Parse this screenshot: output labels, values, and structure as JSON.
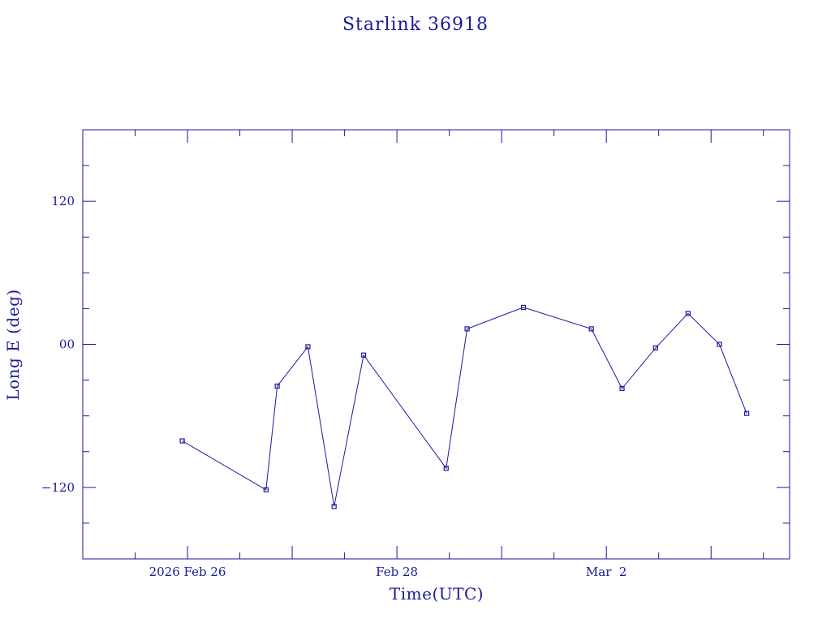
{
  "chart_data": {
    "type": "line",
    "title": "Starlink 36918",
    "xlabel": "Time(UTC)",
    "ylabel": "Long E (deg)",
    "x_tick_labels": [
      {
        "x": "2026-02-26",
        "label": "2026 Feb 26"
      },
      {
        "x": "2026-02-28",
        "label": "Feb 28"
      },
      {
        "x": "2026-03-02",
        "label": "Mar  2"
      }
    ],
    "y_tick_labels": [
      {
        "y": 120,
        "label": "120"
      },
      {
        "y": 0,
        "label": "00"
      },
      {
        "y": -120,
        "label": "−120"
      }
    ],
    "xlim": [
      "2026-02-25T00:00",
      "2026-03-03T18:00"
    ],
    "ylim": [
      -180,
      180
    ],
    "grid": false,
    "series": [
      {
        "color": "#1a1a9c",
        "points": [
          {
            "x": "2026-02-25T22:48",
            "y": -81
          },
          {
            "x": "2026-02-26T18:00",
            "y": -122
          },
          {
            "x": "2026-02-26T20:34",
            "y": -35
          },
          {
            "x": "2026-02-27T03:36",
            "y": -2
          },
          {
            "x": "2026-02-27T09:36",
            "y": -136
          },
          {
            "x": "2026-02-27T16:22",
            "y": -9
          },
          {
            "x": "2026-02-28T11:17",
            "y": -104
          },
          {
            "x": "2026-02-28T16:05",
            "y": 13
          },
          {
            "x": "2026-03-01T05:00",
            "y": 31
          },
          {
            "x": "2026-03-01T20:34",
            "y": 13
          },
          {
            "x": "2026-03-02T03:36",
            "y": -37
          },
          {
            "x": "2026-03-02T11:17",
            "y": -3
          },
          {
            "x": "2026-03-02T18:43",
            "y": 26
          },
          {
            "x": "2026-03-03T01:55",
            "y": 0
          },
          {
            "x": "2026-03-03T08:10",
            "y": -58
          }
        ]
      }
    ]
  }
}
